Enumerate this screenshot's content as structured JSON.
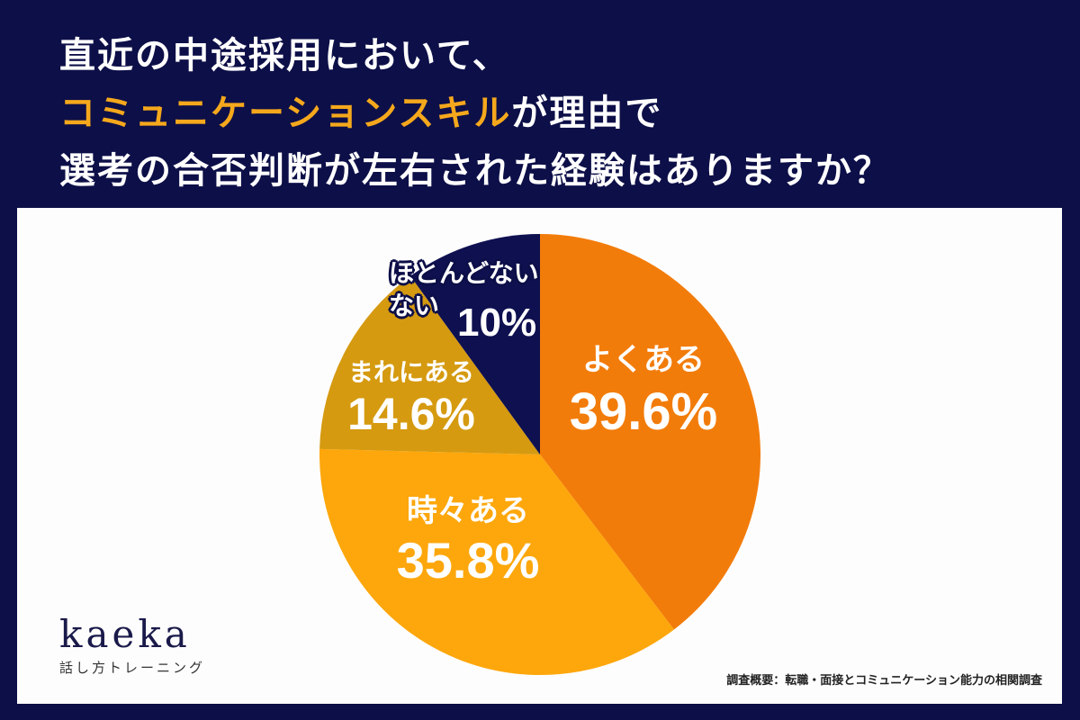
{
  "header": {
    "line1": "直近の中途採用において、",
    "line2_highlight": "コミュニケーションスキル",
    "line2_rest": "が理由で",
    "line3": "選考の合否判断が左右された経験はありますか？"
  },
  "colors": {
    "background": "#0d0f48",
    "highlight": "#f5a81c",
    "panel": "#fefdfd"
  },
  "chart_data": {
    "type": "pie",
    "title": "直近の中途採用において、コミュニケーションスキルが理由で選考の合否判断が左右された経験はありますか？",
    "categories": [
      "よくある",
      "時々ある",
      "まれにある",
      "ほとんどない・ない"
    ],
    "values": [
      39.6,
      35.8,
      14.6,
      10.0
    ],
    "colors": [
      "#f27c0a",
      "#fda70c",
      "#d59a10",
      "#0f1050"
    ],
    "start_angle": "12 o'clock, clockwise",
    "labels": [
      {
        "category": "よくある",
        "value_text": "39.6%"
      },
      {
        "category": "時々ある",
        "value_text": "35.8%"
      },
      {
        "category": "まれにある",
        "value_text": "14.6%"
      },
      {
        "category_line1": "ほとんどない",
        "category_line2": "ない",
        "value_text": "10%"
      }
    ]
  },
  "logo": {
    "name": "kaeka",
    "tagline": "話し方トレーニング"
  },
  "source": "調査概要：転職・面接とコミュニケーション能力の相関調査"
}
